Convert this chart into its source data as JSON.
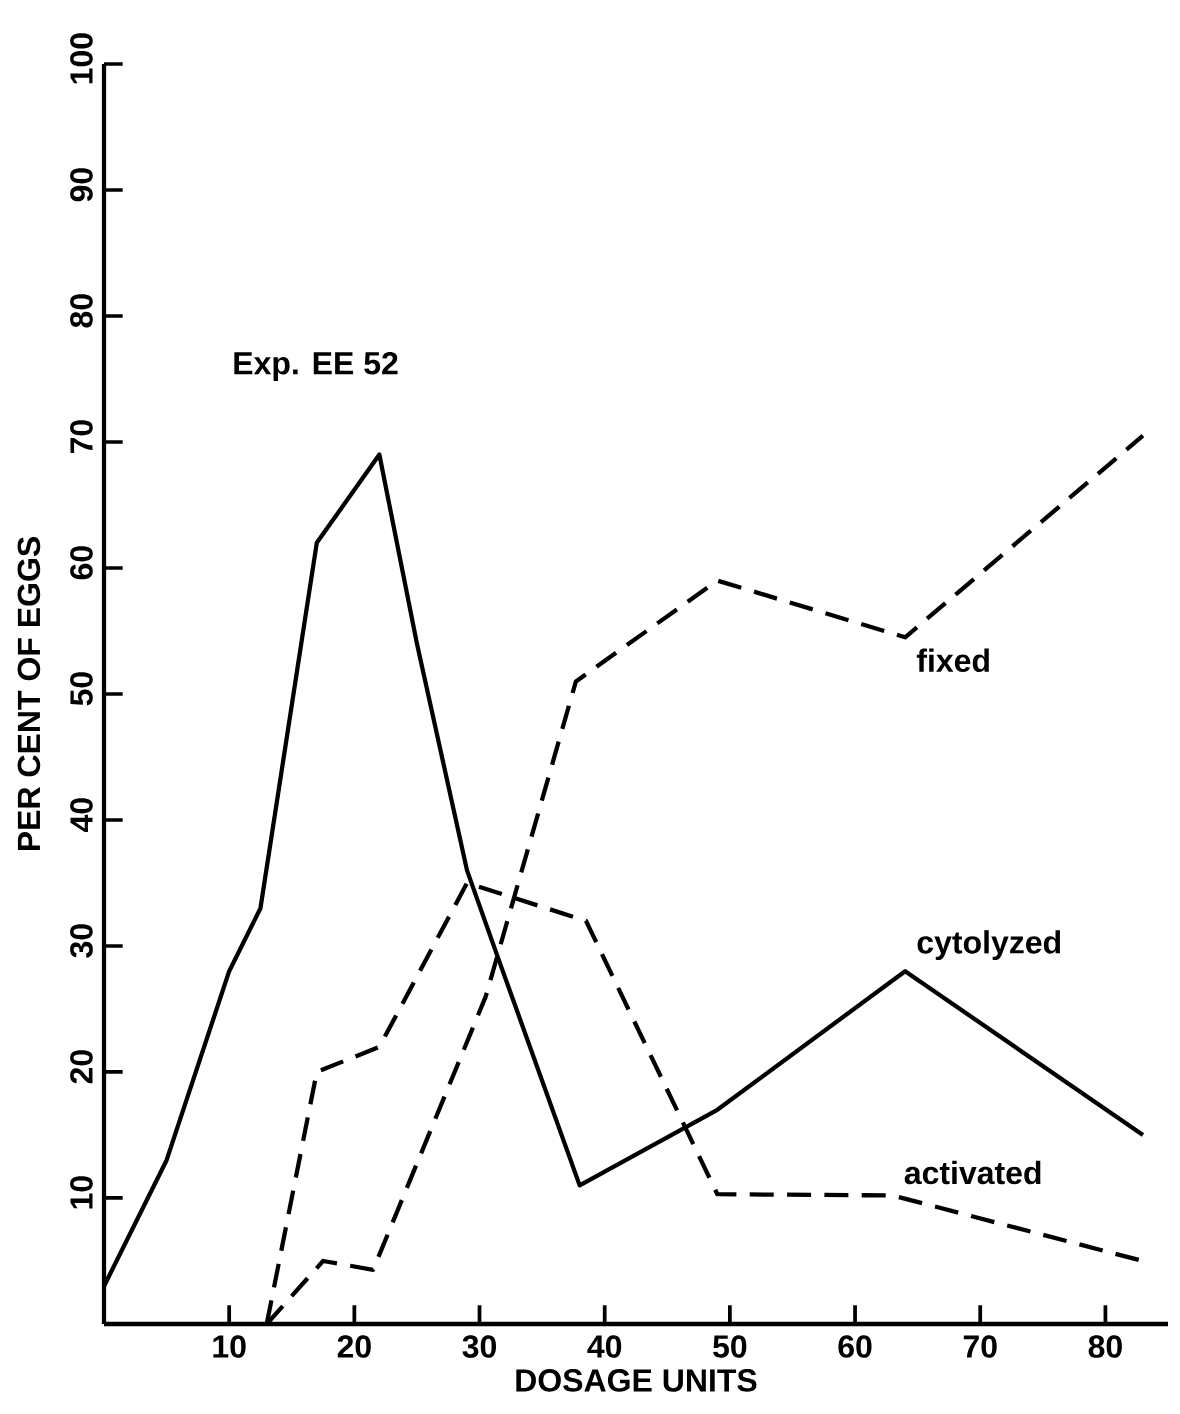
{
  "chart_data": {
    "type": "line",
    "xlabel": "DOSAGE UNITS",
    "ylabel": "PER CENT OF EGGS",
    "annotations": [
      "Exp. EE 52"
    ],
    "xlim": [
      0,
      85
    ],
    "ylim": [
      0,
      100
    ],
    "xticks": [
      10,
      20,
      30,
      40,
      50,
      60,
      70,
      80
    ],
    "yticks": [
      10,
      20,
      30,
      40,
      50,
      60,
      70,
      80,
      90,
      100
    ],
    "marker": "none",
    "series": [
      {
        "name": "fixed",
        "color": "#000000",
        "line_style": "dashed",
        "x": [
          13,
          17.5,
          21.5,
          30.5,
          37.7,
          49,
          64,
          83
        ],
        "values": [
          0,
          5,
          4.3,
          26,
          51,
          59,
          54.5,
          70.5
        ]
      },
      {
        "name": "cytolyzed",
        "color": "#000000",
        "line_style": "solid",
        "x": [
          0,
          5,
          10,
          12.5,
          17,
          22,
          25,
          29,
          31.5,
          38,
          49,
          64,
          83
        ],
        "values": [
          3,
          13,
          28,
          33,
          62,
          69,
          54,
          36,
          29,
          11,
          17,
          28,
          15
        ]
      },
      {
        "name": "activated",
        "color": "#000000",
        "line_style": "dashed",
        "x": [
          13,
          17,
          22,
          29,
          38.5,
          49,
          63,
          83
        ],
        "values": [
          0,
          20,
          22,
          35,
          32,
          10.3,
          10.2,
          5
        ]
      }
    ]
  }
}
